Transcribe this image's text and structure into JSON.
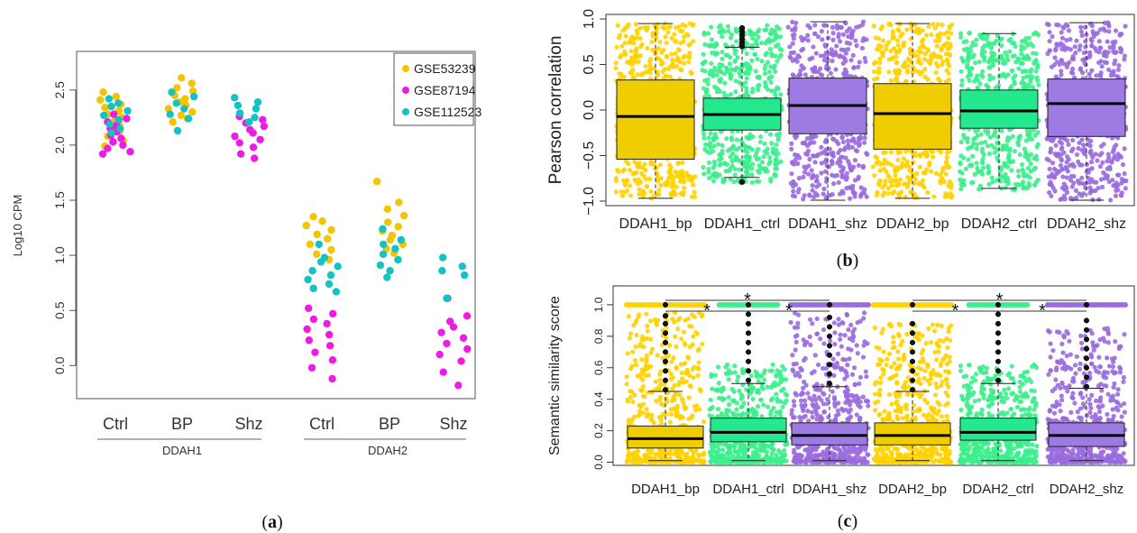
{
  "panels": {
    "a": {
      "caption_open": "(",
      "caption_letter": "a",
      "caption_close": ")"
    },
    "b": {
      "caption_open": "(",
      "caption_letter": "b",
      "caption_close": ")"
    },
    "c": {
      "caption_open": "(",
      "caption_letter": "c",
      "caption_close": ")"
    }
  },
  "chart_data": [
    {
      "id": "a",
      "type": "scatter",
      "subtype": "beeswarm",
      "ylabel": "Log10 CPM",
      "ylim": [
        -0.3,
        2.85
      ],
      "yticks": [
        0.0,
        0.5,
        1.0,
        1.5,
        2.0,
        2.5
      ],
      "ytick_labels": [
        "0.0",
        "0.5",
        "1.0",
        "1.5",
        "2.0",
        "2.5"
      ],
      "grid": false,
      "legend_position": "top-right",
      "categories": [
        "Ctrl",
        "BP",
        "Shz",
        "Ctrl",
        "BP",
        "Shz"
      ],
      "groups": [
        {
          "label": "DDAH1",
          "categories": [
            0,
            1,
            2
          ]
        },
        {
          "label": "DDAH2",
          "categories": [
            3,
            4,
            5
          ]
        }
      ],
      "series": [
        {
          "name": "GSE53239",
          "color": "#F5C400",
          "points": [
            [
              0,
              [
                2.48,
                2.44,
                2.41,
                2.37,
                2.34,
                2.31,
                2.28,
                2.25,
                2.22,
                2.19,
                2.16,
                2.12,
                2.08,
                2.04,
                1.99
              ]
            ],
            [
              1,
              [
                2.61,
                2.56,
                2.52,
                2.49,
                2.45,
                2.42,
                2.39,
                2.36,
                2.33,
                2.3,
                2.27,
                2.24,
                2.21
              ]
            ],
            [
              3,
              [
                1.35,
                1.31,
                1.27,
                1.23,
                1.19,
                1.15,
                1.1,
                1.05,
                1.01,
                0.96
              ]
            ],
            [
              4,
              [
                1.67,
                1.48,
                1.42,
                1.36,
                1.3,
                1.26,
                1.22,
                1.18,
                1.14,
                1.1,
                1.06,
                1.02
              ]
            ]
          ]
        },
        {
          "name": "GSE87194",
          "color": "#EE1BE6",
          "points": [
            [
              0,
              [
                2.28,
                2.24,
                2.21,
                2.18,
                2.15,
                2.12,
                2.09,
                2.06,
                2.03,
                2.0,
                1.97,
                1.94,
                1.92
              ]
            ],
            [
              2,
              [
                2.26,
                2.23,
                2.2,
                2.17,
                2.14,
                2.11,
                2.08,
                2.05,
                2.02,
                1.98,
                1.92,
                1.88
              ]
            ],
            [
              3,
              [
                0.52,
                0.47,
                0.42,
                0.38,
                0.33,
                0.28,
                0.23,
                0.18,
                0.12,
                0.05,
                -0.02,
                -0.12
              ]
            ],
            [
              5,
              [
                0.61,
                0.45,
                0.4,
                0.35,
                0.3,
                0.25,
                0.2,
                0.15,
                0.1,
                0.04,
                -0.06,
                -0.18
              ]
            ]
          ]
        },
        {
          "name": "GSE112523",
          "color": "#13C2C2",
          "points": [
            [
              0,
              [
                2.42,
                2.38,
                2.35,
                2.31,
                2.27,
                2.23,
                2.19,
                2.15,
                2.11
              ]
            ],
            [
              1,
              [
                2.48,
                2.44,
                2.38,
                2.33,
                2.28,
                2.24,
                2.13
              ]
            ],
            [
              2,
              [
                2.43,
                2.39,
                2.36,
                2.33,
                2.29,
                2.25,
                2.21
              ]
            ],
            [
              3,
              [
                1.1,
                0.98,
                0.94,
                0.9,
                0.86,
                0.82,
                0.78,
                0.74,
                0.7,
                0.67
              ]
            ],
            [
              4,
              [
                1.24,
                1.14,
                1.1,
                1.06,
                1.01,
                0.96,
                0.91,
                0.86,
                0.8
              ]
            ],
            [
              5,
              [
                0.98,
                0.9,
                0.86,
                0.82,
                0.61
              ]
            ]
          ]
        }
      ]
    },
    {
      "id": "b",
      "type": "box",
      "ylabel": "Pearson correlation",
      "ylim": [
        -1.05,
        1.05
      ],
      "yticks": [
        -1.0,
        -0.5,
        0.0,
        0.5,
        1.0
      ],
      "ytick_labels": [
        "−1.0",
        "−0.5",
        "0.0",
        "0.5",
        "1.0"
      ],
      "grid": false,
      "categories": [
        "DDAH1_bp",
        "DDAH1_ctrl",
        "DDAH1_shz",
        "DDAH2_bp",
        "DDAH2_ctrl",
        "DDAH2_shz"
      ],
      "colors": [
        "#FFD200",
        "#3CEE8C",
        "#9A6CDF",
        "#FFD200",
        "#3CEE8C",
        "#9A6CDF"
      ],
      "box_colors": [
        "#F0CD00",
        "#24E88E",
        "#9D7BE3",
        "#F0CD00",
        "#24E88E",
        "#9D7BE3"
      ],
      "boxes": [
        {
          "min": -0.97,
          "q1": -0.54,
          "median": -0.07,
          "q3": 0.33,
          "max": 0.95,
          "jitter": [
            -0.97,
            0.95
          ],
          "outliers": []
        },
        {
          "min": -0.74,
          "q1": -0.22,
          "median": -0.05,
          "q3": 0.13,
          "max": 0.69,
          "jitter": [
            -0.8,
            0.93
          ],
          "outliers": [
            0.7,
            0.74,
            0.78,
            0.82,
            0.86,
            0.9,
            -0.79
          ]
        },
        {
          "min": -0.99,
          "q1": -0.26,
          "median": 0.05,
          "q3": 0.35,
          "max": 0.97,
          "jitter": [
            -0.99,
            0.97
          ],
          "outliers": []
        },
        {
          "min": -0.97,
          "q1": -0.43,
          "median": -0.04,
          "q3": 0.29,
          "max": 0.95,
          "jitter": [
            -0.97,
            0.95
          ],
          "outliers": []
        },
        {
          "min": -0.86,
          "q1": -0.2,
          "median": -0.01,
          "q3": 0.22,
          "max": 0.84,
          "jitter": [
            -0.88,
            0.85
          ],
          "outliers": []
        },
        {
          "min": -0.99,
          "q1": -0.29,
          "median": 0.07,
          "q3": 0.34,
          "max": 0.96,
          "jitter": [
            -0.99,
            0.96
          ],
          "outliers": []
        }
      ]
    },
    {
      "id": "c",
      "type": "box",
      "ylabel": "Semantic similarity score",
      "ylim": [
        -0.02,
        1.12
      ],
      "yticks": [
        0.0,
        0.2,
        0.4,
        0.6,
        0.8,
        1.0
      ],
      "ytick_labels": [
        "0.0",
        "0.2",
        "0.4",
        "0.6",
        "0.8",
        "1.0"
      ],
      "grid": false,
      "categories": [
        "DDAH1_bp",
        "DDAH1_ctrl",
        "DDAH1_shz",
        "DDAH2_bp",
        "DDAH2_ctrl",
        "DDAH2_shz"
      ],
      "colors": [
        "#FFD200",
        "#3CEE8C",
        "#9A6CDF",
        "#FFD200",
        "#3CEE8C",
        "#9A6CDF"
      ],
      "box_colors": [
        "#F0CD00",
        "#24E88E",
        "#9D7BE3",
        "#F0CD00",
        "#24E88E",
        "#9D7BE3"
      ],
      "boxes": [
        {
          "min": 0.01,
          "q1": 0.09,
          "median": 0.15,
          "q3": 0.23,
          "max": 0.45,
          "jitter": [
            0.0,
            0.95
          ],
          "outliers": [
            0.46,
            0.52,
            0.58,
            0.64,
            0.7,
            0.76,
            0.82,
            0.88,
            0.93,
            1.0
          ]
        },
        {
          "min": 0.01,
          "q1": 0.13,
          "median": 0.19,
          "q3": 0.28,
          "max": 0.5,
          "jitter": [
            0.0,
            0.62
          ],
          "outliers": [
            0.52,
            0.58,
            0.64,
            0.7,
            0.76,
            0.82,
            0.88,
            0.94,
            1.0
          ]
        },
        {
          "min": 0.01,
          "q1": 0.11,
          "median": 0.17,
          "q3": 0.25,
          "max": 0.48,
          "jitter": [
            0.0,
            0.95
          ],
          "outliers": [
            0.5,
            0.56,
            0.62,
            0.68,
            0.74,
            0.8,
            0.86,
            0.92,
            1.0
          ]
        },
        {
          "min": 0.01,
          "q1": 0.11,
          "median": 0.17,
          "q3": 0.25,
          "max": 0.45,
          "jitter": [
            0.0,
            0.88
          ],
          "outliers": [
            0.46,
            0.52,
            0.58,
            0.64,
            0.7,
            0.76,
            0.82,
            0.88,
            1.0
          ]
        },
        {
          "min": 0.01,
          "q1": 0.14,
          "median": 0.19,
          "q3": 0.28,
          "max": 0.5,
          "jitter": [
            0.0,
            0.62
          ],
          "outliers": [
            0.52,
            0.58,
            0.64,
            0.7,
            0.76,
            0.82,
            0.88,
            0.94,
            1.0
          ]
        },
        {
          "min": 0.01,
          "q1": 0.1,
          "median": 0.17,
          "q3": 0.25,
          "max": 0.47,
          "jitter": [
            0.0,
            0.85
          ],
          "outliers": [
            0.48,
            0.54,
            0.6,
            0.66,
            0.72,
            0.78,
            0.84,
            0.9,
            1.0
          ]
        }
      ],
      "top_dots": [
        0,
        1,
        2,
        3,
        4,
        5
      ],
      "top_dots_value": 1.0,
      "significance": [
        {
          "from": 0,
          "to": 1,
          "label": "*",
          "level": 1
        },
        {
          "from": 1,
          "to": 2,
          "label": "*",
          "level": 1
        },
        {
          "from": 0,
          "to": 2,
          "label": "*",
          "level": 2
        },
        {
          "from": 3,
          "to": 4,
          "label": "*",
          "level": 1
        },
        {
          "from": 4,
          "to": 5,
          "label": "*",
          "level": 1
        },
        {
          "from": 3,
          "to": 5,
          "label": "*",
          "level": 2
        }
      ]
    }
  ]
}
